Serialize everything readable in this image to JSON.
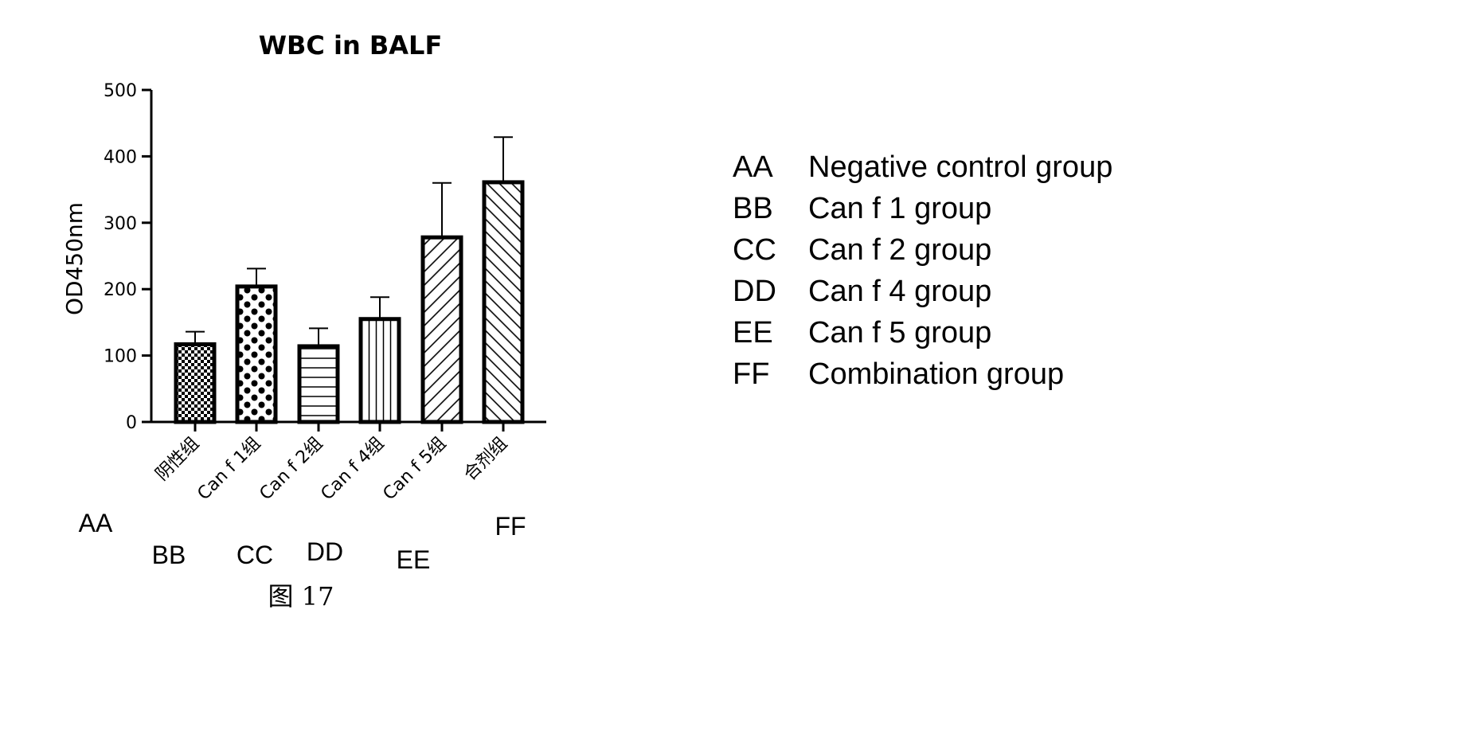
{
  "chart_data": {
    "type": "bar",
    "title": "WBC in BALF",
    "ylabel": "OD450nm",
    "xlabel": "",
    "ylim": [
      0,
      500
    ],
    "yticks": [
      0,
      100,
      200,
      300,
      400,
      500
    ],
    "categories": [
      "阴性组",
      "Can f 1组",
      "Can f 2组",
      "Can f 4组",
      "Can f 5组",
      "合剂组"
    ],
    "codes": [
      "AA",
      "BB",
      "CC",
      "DD",
      "EE",
      "FF"
    ],
    "values": [
      117,
      204,
      114,
      155,
      278,
      361
    ],
    "errors": [
      19,
      27,
      27,
      33,
      82,
      68
    ],
    "patterns": [
      "checker",
      "dots",
      "hlines",
      "vlines",
      "diag-up",
      "diag-down"
    ],
    "grid": false
  },
  "legend": {
    "items": [
      {
        "code": "AA",
        "label": "Negative control group"
      },
      {
        "code": "BB",
        "label": "Can f 1 group"
      },
      {
        "code": "CC",
        "label": "Can f 2 group"
      },
      {
        "code": "DD",
        "label": "Can f 4 group"
      },
      {
        "code": "EE",
        "label": "Can f 5 group"
      },
      {
        "code": "FF",
        "label": "Combination group"
      }
    ]
  },
  "figure_label": "图 17"
}
